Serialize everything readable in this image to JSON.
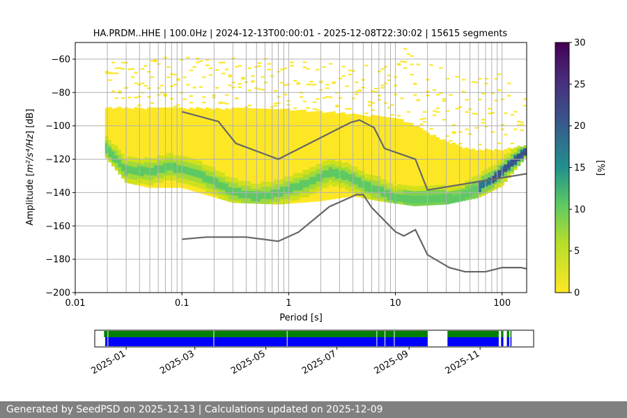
{
  "chart_data": [
    {
      "type": "heatmap",
      "title": "HA.PRDM..HHE | 100.0Hz | 2024-12-13T00:00:01 - 2025-12-08T22:30:02 | 15615 segments",
      "xlabel": "Period [s]",
      "ylabel_prefix": "Amplitude [",
      "ylabel_math": "m²/s⁴/Hz",
      "ylabel_suffix": "] [dB]",
      "x_scale": "log",
      "xlim": [
        0.01,
        170
      ],
      "ylim": [
        -200,
        -50
      ],
      "x_ticks": [
        0.01,
        0.1,
        1,
        10,
        100
      ],
      "x_tick_labels": [
        "0.01",
        "0.1",
        "1",
        "10",
        "100"
      ],
      "y_ticks": [
        -200,
        -180,
        -160,
        -140,
        -120,
        -100,
        -80,
        -60
      ],
      "y_tick_labels": [
        "−200",
        "−180",
        "−160",
        "−140",
        "−120",
        "−100",
        "−80",
        "−60"
      ],
      "grid": true,
      "period_gridlines": [
        0.02,
        0.03,
        0.04,
        0.05,
        0.06,
        0.07,
        0.08,
        0.09,
        0.2,
        0.3,
        0.4,
        0.5,
        0.6,
        0.7,
        0.8,
        0.9,
        2,
        3,
        4,
        5,
        6,
        7,
        8,
        9,
        20,
        30,
        40,
        50,
        60,
        70,
        80,
        90
      ],
      "colorbar": {
        "label": "[%]",
        "range": [
          0,
          30
        ],
        "ticks": [
          0,
          5,
          10,
          15,
          20,
          25,
          30
        ],
        "colormap": "viridis_r",
        "colors": [
          "#fde725",
          "#5ec962",
          "#21918c",
          "#3b528b",
          "#440154"
        ]
      },
      "model_curves": [
        {
          "name": "",
          "color": "#666666",
          "points": [
            [
              0.1,
              -91.5
            ],
            [
              0.22,
              -97.4
            ],
            [
              0.32,
              -110.5
            ],
            [
              0.8,
              -120
            ],
            [
              3.8,
              -98
            ],
            [
              4.6,
              -96.5
            ],
            [
              6.3,
              -101
            ],
            [
              7.9,
              -113.5
            ],
            [
              15.4,
              -120
            ],
            [
              20,
              -138.5
            ],
            [
              170,
              -128.7
            ]
          ]
        },
        {
          "name": "",
          "color": "#666666",
          "points": [
            [
              0.1,
              -168
            ],
            [
              0.17,
              -166.7
            ],
            [
              0.4,
              -166.7
            ],
            [
              0.8,
              -169.2
            ],
            [
              1.24,
              -163.7
            ],
            [
              2.4,
              -148.5
            ],
            [
              4.3,
              -141.3
            ],
            [
              5.0,
              -141.3
            ],
            [
              6.0,
              -149
            ],
            [
              10,
              -163.5
            ],
            [
              12,
              -166
            ],
            [
              15.4,
              -162.3
            ],
            [
              20,
              -177.3
            ],
            [
              32,
              -185
            ],
            [
              45,
              -187.5
            ],
            [
              70,
              -187.5
            ],
            [
              100,
              -185
            ],
            [
              150,
              -185
            ],
            [
              170,
              -185.7
            ]
          ]
        }
      ],
      "psd_density": {
        "period_range": [
          0.019,
          170
        ],
        "mode_curve": [
          [
            0.019,
            -113
          ],
          [
            0.025,
            -122
          ],
          [
            0.03,
            -127
          ],
          [
            0.05,
            -128
          ],
          [
            0.08,
            -125
          ],
          [
            0.15,
            -130
          ],
          [
            0.3,
            -140
          ],
          [
            0.5,
            -143
          ],
          [
            0.8,
            -141
          ],
          [
            1.5,
            -135
          ],
          [
            2.5,
            -128
          ],
          [
            4,
            -132
          ],
          [
            5,
            -136
          ],
          [
            7,
            -139
          ],
          [
            10,
            -144
          ],
          [
            20,
            -145
          ],
          [
            40,
            -144
          ],
          [
            80,
            -133
          ],
          [
            140,
            -120
          ],
          [
            170,
            -115
          ]
        ],
        "upper_edge": [
          [
            0.019,
            -90
          ],
          [
            0.1,
            -90
          ],
          [
            1,
            -91
          ],
          [
            3,
            -93
          ],
          [
            10,
            -96
          ],
          [
            15,
            -100
          ],
          [
            25,
            -108
          ],
          [
            50,
            -115
          ],
          [
            100,
            -115
          ],
          [
            170,
            -112
          ]
        ],
        "lower_edge": [
          [
            0.019,
            -118
          ],
          [
            0.03,
            -134
          ],
          [
            0.05,
            -137
          ],
          [
            0.1,
            -137
          ],
          [
            0.3,
            -146
          ],
          [
            0.8,
            -147
          ],
          [
            2,
            -145
          ],
          [
            4,
            -142
          ],
          [
            7,
            -145
          ],
          [
            15,
            -148
          ],
          [
            30,
            -147
          ],
          [
            60,
            -143
          ],
          [
            100,
            -136
          ],
          [
            170,
            -118
          ]
        ]
      }
    },
    {
      "type": "timeline",
      "x_tick_labels": [
        "2025-01",
        "2025-03",
        "2025-05",
        "2025-07",
        "2025-09",
        "2025-11"
      ],
      "x_ticks": [
        "2025-01-01",
        "2025-03-01",
        "2025-05-01",
        "2025-07-01",
        "2025-09-01",
        "2025-11-01"
      ],
      "xlim": [
        "2024-12-05",
        "2025-12-17"
      ],
      "coverage_color": "#008000",
      "data_color": "#0000ff",
      "coverage_segments": [
        [
          "2024-12-13",
          "2025-09-17"
        ],
        [
          "2025-10-04",
          "2025-11-17"
        ],
        [
          "2025-11-19",
          "2025-11-21"
        ],
        [
          "2025-11-24",
          "2025-11-26"
        ],
        [
          "2025-11-27",
          "2025-11-28"
        ]
      ],
      "data_segments": [
        [
          "2024-12-14",
          "2025-09-17"
        ],
        [
          "2025-10-04",
          "2025-11-17"
        ],
        [
          "2025-11-19",
          "2025-11-21"
        ],
        [
          "2025-11-24",
          "2025-11-26"
        ],
        [
          "2025-11-27",
          "2025-11-28"
        ]
      ],
      "gaps": [
        "2024-12-16",
        "2025-03-17",
        "2025-05-19",
        "2025-08-04",
        "2025-08-11",
        "2025-08-19"
      ]
    }
  ],
  "footer": {
    "text": "Generated by SeedPSD on 2025-12-13 | Calculations updated on 2025-12-09"
  }
}
